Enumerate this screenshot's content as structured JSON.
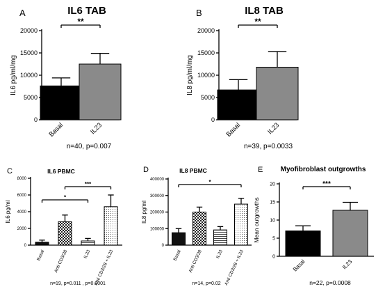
{
  "panels": [
    {
      "letter": "A",
      "title": "IL6 TAB",
      "ylabel": "IL6 pg/ml/mg",
      "chart_data": {
        "type": "bar",
        "categories": [
          "Basal",
          "IL23"
        ],
        "values": [
          7600,
          12500
        ],
        "errors": [
          1800,
          2400
        ],
        "yticks": [
          "0",
          "5000",
          "10000",
          "15000",
          "20000"
        ],
        "ylim": [
          0,
          20000
        ],
        "title": "IL6 TAB",
        "ylabel": "IL6 pg/ml/mg"
      },
      "colors": [
        "#000000",
        "#8a8a8a"
      ],
      "patterns": [
        "solid",
        "solid"
      ],
      "sig": [
        {
          "from": 0,
          "to": 1,
          "label": "**"
        }
      ],
      "caption": "n=40, p=0.007"
    },
    {
      "letter": "B",
      "title": "IL8 TAB",
      "ylabel": "IL8 pg/ml/mg",
      "chart_data": {
        "type": "bar",
        "categories": [
          "Basal",
          "IL23"
        ],
        "values": [
          6700,
          11800
        ],
        "errors": [
          2300,
          3500
        ],
        "yticks": [
          "0",
          "5000",
          "10000",
          "15000",
          "20000"
        ],
        "ylim": [
          0,
          20000
        ],
        "title": "IL8 TAB",
        "ylabel": "IL8 pg/ml/mg"
      },
      "colors": [
        "#000000",
        "#8a8a8a"
      ],
      "patterns": [
        "solid",
        "solid"
      ],
      "sig": [
        {
          "from": 0,
          "to": 1,
          "label": "**"
        }
      ],
      "caption": "n=39, p=0.0033"
    },
    {
      "letter": "C",
      "title": "IL6 PBMC",
      "ylabel": "IL6 pg/ml",
      "chart_data": {
        "type": "bar",
        "categories": [
          "Basal",
          "Anti CD3/28",
          "IL23",
          "Anti CD3/28 + IL23"
        ],
        "values": [
          350,
          2800,
          500,
          4600
        ],
        "errors": [
          250,
          800,
          300,
          1400
        ],
        "yticks": [
          "0",
          "2000",
          "4000",
          "6000",
          "8000"
        ],
        "ylim": [
          0,
          8000
        ],
        "title": "IL6 PBMC",
        "ylabel": "IL6 pg/ml"
      },
      "colors": [
        "#111111",
        "#111111",
        "#111111",
        "#111111"
      ],
      "patterns": [
        "solid",
        "checker",
        "hatch",
        "dots"
      ],
      "sig": [
        {
          "from": 0,
          "to": 2,
          "label": "*"
        },
        {
          "from": 1,
          "to": 3,
          "label": "***"
        }
      ],
      "caption": "n=19, p=0.011 , p=0.0001"
    },
    {
      "letter": "D",
      "title": "IL8 PBMC",
      "ylabel": "IL8 pg/ml",
      "chart_data": {
        "type": "bar",
        "categories": [
          "Basal",
          "Anti CD3/28",
          "IL23",
          "Anti CD3/28 + IL23"
        ],
        "values": [
          75000,
          200000,
          92000,
          248000
        ],
        "errors": [
          25000,
          30000,
          20000,
          35000
        ],
        "yticks": [
          "0",
          "100000",
          "200000",
          "300000",
          "400000"
        ],
        "ylim": [
          0,
          400000
        ],
        "title": "IL8 PBMC",
        "ylabel": "IL8 pg/ml"
      },
      "colors": [
        "#111111",
        "#111111",
        "#111111",
        "#111111"
      ],
      "patterns": [
        "solid",
        "checker",
        "hatch",
        "dots"
      ],
      "sig": [
        {
          "from": 0,
          "to": 3,
          "label": "*"
        }
      ],
      "caption": "n=14, p=0.02"
    },
    {
      "letter": "E",
      "title": "Myofibroblast outgrowths",
      "ylabel": "Mean outgrowths",
      "chart_data": {
        "type": "bar",
        "categories": [
          "Basal",
          "IL23"
        ],
        "values": [
          7,
          12.7
        ],
        "errors": [
          1.4,
          2.2
        ],
        "yticks": [
          "0",
          "5",
          "10",
          "15",
          "20"
        ],
        "ylim": [
          0,
          20
        ],
        "title": "Myofibroblast outgrowths",
        "ylabel": "Mean outgrowths"
      },
      "colors": [
        "#000000",
        "#8a8a8a"
      ],
      "patterns": [
        "solid",
        "solid"
      ],
      "sig": [
        {
          "from": 0,
          "to": 1,
          "label": "***"
        }
      ],
      "caption": "n=22, p=0.0008"
    }
  ]
}
